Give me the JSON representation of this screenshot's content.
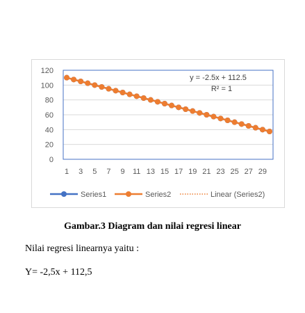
{
  "chart_data": {
    "type": "line",
    "x": [
      1,
      2,
      3,
      4,
      5,
      6,
      7,
      8,
      9,
      10,
      11,
      12,
      13,
      14,
      15,
      16,
      17,
      18,
      19,
      20,
      21,
      22,
      23,
      24,
      25,
      26,
      27,
      28,
      29,
      30
    ],
    "x_tick_labels": [
      "1",
      "3",
      "5",
      "7",
      "9",
      "11",
      "13",
      "15",
      "17",
      "19",
      "21",
      "23",
      "25",
      "27",
      "29"
    ],
    "y_tick_labels": [
      "0",
      "20",
      "40",
      "60",
      "80",
      "100",
      "120"
    ],
    "ylim": [
      0,
      120
    ],
    "grid": "horizontal",
    "legend_position": "bottom",
    "series": [
      {
        "name": "Series1",
        "color": "#4472c4",
        "values": [
          110,
          107.5,
          105,
          102.5,
          100,
          97.5,
          95,
          92.5,
          90,
          87.5,
          85,
          82.5,
          80,
          77.5,
          75,
          72.5,
          70,
          67.5,
          65,
          62.5,
          60,
          57.5,
          55,
          52.5,
          50,
          47.5,
          45,
          42.5,
          40,
          37.5
        ]
      },
      {
        "name": "Series2",
        "color": "#ed7d31",
        "values": [
          110,
          107.5,
          105,
          102.5,
          100,
          97.5,
          95,
          92.5,
          90,
          87.5,
          85,
          82.5,
          80,
          77.5,
          75,
          72.5,
          70,
          67.5,
          65,
          62.5,
          60,
          57.5,
          55,
          52.5,
          50,
          47.5,
          45,
          42.5,
          40,
          37.5
        ]
      }
    ],
    "trendline": {
      "name": "Linear (Series2)",
      "color": "#ed7d31",
      "slope": -2.5,
      "intercept": 112.5
    },
    "annotation": {
      "equation": "y = -2.5x + 112.5",
      "r2": "R² = 1"
    }
  },
  "caption": "Gambar.3  Diagram dan nilai regresi linear",
  "paragraph1": "Nilai regresi linearnya yaitu :",
  "paragraph2": "Y= -2,5x + 112,5"
}
